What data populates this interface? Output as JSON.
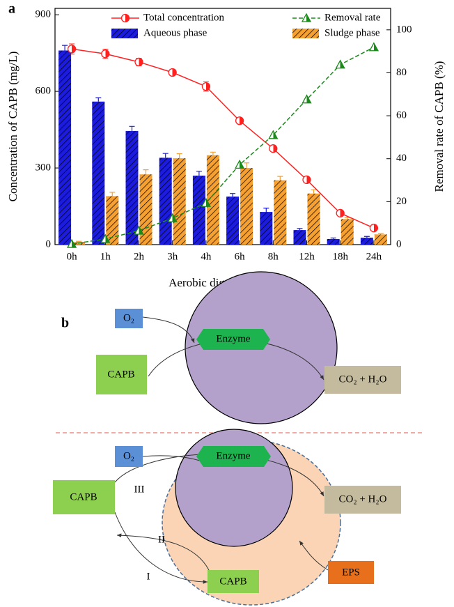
{
  "chart_data": {
    "type": "bar",
    "panel_label": "a",
    "x_label": "Aerobic digestion time",
    "y_label": "Concentration of CAPB (mg/L)",
    "y2_label": "Removal rate of CAPB (%)",
    "categories": [
      "0h",
      "1h",
      "2h",
      "3h",
      "4h",
      "6h",
      "8h",
      "12h",
      "18h",
      "24h"
    ],
    "series": [
      {
        "name": "Total concentration",
        "type": "line",
        "color": "#ff2020",
        "values": [
          766,
          747,
          715,
          674,
          619,
          485,
          376,
          254,
          123,
          65
        ],
        "errors": [
          20,
          18,
          15,
          12,
          18,
          12,
          10,
          10,
          8,
          6
        ]
      },
      {
        "name": "Removal rate",
        "type": "line",
        "axis": "y2",
        "color": "#1a8a1a",
        "values": [
          0.3,
          2.6,
          6.5,
          12.3,
          19.4,
          37.2,
          51,
          67.6,
          83.8,
          91.9
        ]
      },
      {
        "name": "Aqueous phase",
        "type": "bar",
        "color": "#1c1ce0",
        "values": [
          760,
          560,
          445,
          340,
          270,
          188,
          128,
          57,
          22,
          27
        ],
        "errors": [
          20,
          15,
          18,
          17,
          17,
          12,
          15,
          6,
          4,
          5
        ]
      },
      {
        "name": "Sludge phase",
        "type": "bar",
        "color": "#f5a030",
        "values": [
          10,
          190,
          275,
          338,
          350,
          300,
          252,
          200,
          100,
          40
        ],
        "errors": [
          3,
          15,
          18,
          18,
          12,
          20,
          15,
          15,
          6,
          3
        ]
      }
    ],
    "ylim": [
      0,
      925
    ],
    "yticks": [
      0,
      300,
      600,
      900
    ],
    "y2lim": [
      0,
      110
    ],
    "y2ticks": [
      0,
      20,
      40,
      60,
      80,
      100
    ],
    "legend": "top",
    "grid": false
  },
  "diagram": {
    "panel_label": "b",
    "top": {
      "oxygen": "O₂",
      "enzyme": "Enzyme",
      "substrate": "CAPB",
      "product": "CO₂ + H₂O"
    },
    "bottom": {
      "oxygen": "O₂",
      "enzyme": "Enzyme",
      "product": "CO₂ + H₂O",
      "substrate": "CAPB",
      "adsorbed": "CAPB",
      "eps": "EPS",
      "path_1": "I",
      "path_2": "II",
      "path_3": "III"
    }
  }
}
